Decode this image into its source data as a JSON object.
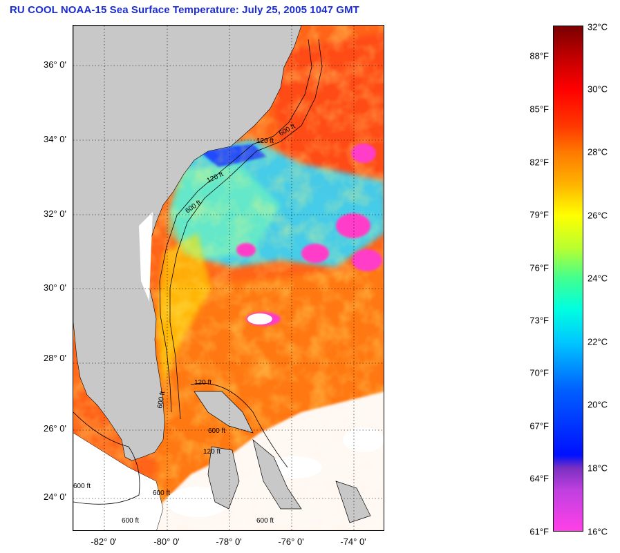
{
  "title": "RU COOL  NOAA-15  Sea Surface Temperature:  July 25, 2005 1047 GMT",
  "map": {
    "lon_range": [
      -83,
      -73
    ],
    "lat_range": [
      23,
      37
    ],
    "lat_labels": [
      "36° 0'",
      "34° 0'",
      "32° 0'",
      "30° 0'",
      "28° 0'",
      "26° 0'",
      "24° 0'"
    ],
    "lon_labels": [
      "-82° 0'",
      "-80° 0'",
      "-78° 0'",
      "-76° 0'",
      "-74° 0'"
    ],
    "contour_labels": [
      "120 ft",
      "120 ft",
      "600 ft",
      "600 ft",
      "120 ft",
      "600 ft",
      "600 ft",
      "120 ft",
      "600 ft",
      "600 ft",
      "600 ft",
      "600 ft"
    ],
    "colors": {
      "land": "#c8c8c8",
      "cloud": "#ffffff",
      "warm_water": "#ff6a14",
      "cool_water": "#2bd2ff"
    }
  },
  "colorbar": {
    "fahrenheit_labels": [
      "88°F",
      "85°F",
      "82°F",
      "79°F",
      "76°F",
      "73°F",
      "70°F",
      "67°F",
      "64°F",
      "61°F"
    ],
    "celsius_labels": [
      "32°C",
      "30°C",
      "28°C",
      "26°C",
      "24°C",
      "22°C",
      "20°C",
      "18°C",
      "16°C"
    ],
    "range_c": [
      16,
      32
    ]
  }
}
